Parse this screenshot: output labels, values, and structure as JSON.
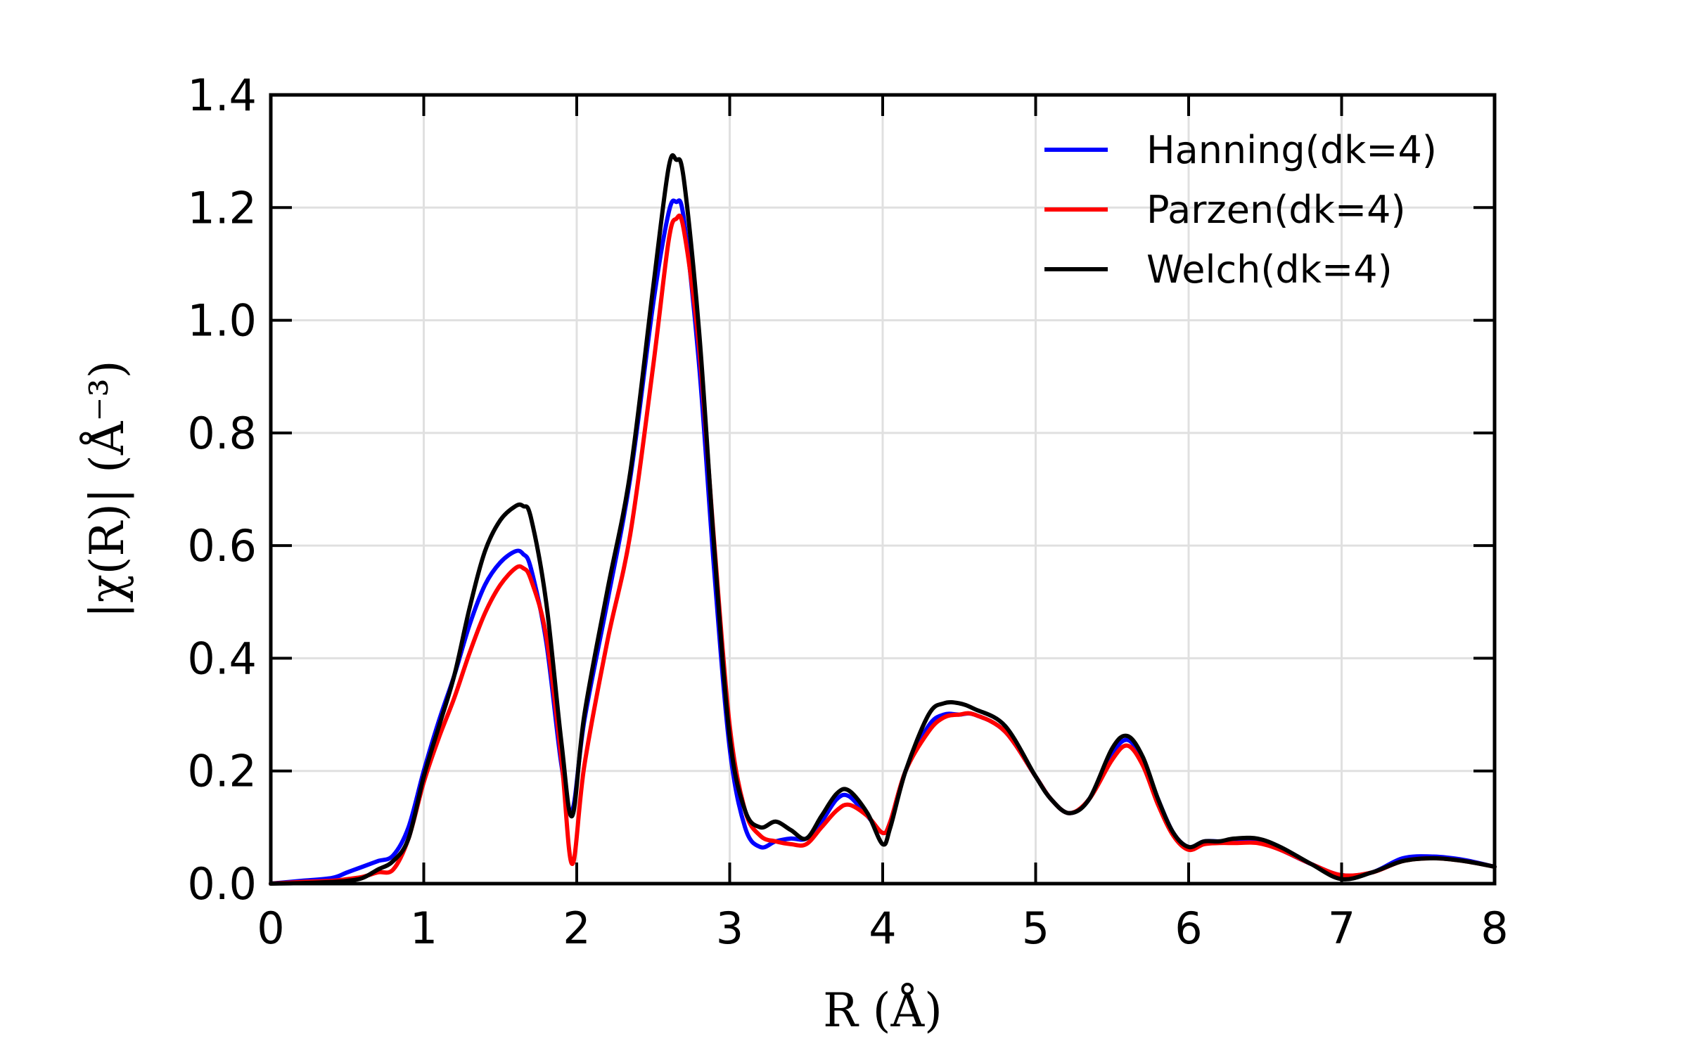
{
  "chart_data": {
    "type": "line",
    "xlabel": "R (Å)",
    "ylabel": "|χ(R)| (Å⁻³)",
    "xlim": [
      0,
      8
    ],
    "ylim": [
      0,
      1.4
    ],
    "xticks": [
      0,
      1,
      2,
      3,
      4,
      5,
      6,
      7,
      8
    ],
    "xtick_labels": [
      "0",
      "1",
      "2",
      "3",
      "4",
      "5",
      "6",
      "7",
      "8"
    ],
    "yticks": [
      0.0,
      0.2,
      0.4,
      0.6,
      0.8,
      1.0,
      1.2,
      1.4
    ],
    "ytick_labels": [
      "0.0",
      "0.2",
      "0.4",
      "0.6",
      "0.8",
      "1.0",
      "1.2",
      "1.4"
    ],
    "grid": true,
    "legend_position": "top-right",
    "series": [
      {
        "name": "Hanning(dk=4)",
        "color": "#0000ff",
        "x": [
          0,
          0.2,
          0.4,
          0.5,
          0.6,
          0.7,
          0.8,
          0.9,
          1.0,
          1.1,
          1.2,
          1.3,
          1.4,
          1.5,
          1.6,
          1.65,
          1.7,
          1.8,
          1.9,
          1.97,
          2.05,
          2.2,
          2.35,
          2.5,
          2.6,
          2.65,
          2.7,
          2.8,
          2.9,
          3.0,
          3.1,
          3.2,
          3.3,
          3.4,
          3.5,
          3.6,
          3.7,
          3.78,
          3.9,
          4.0,
          4.05,
          4.15,
          4.3,
          4.4,
          4.5,
          4.6,
          4.8,
          5.0,
          5.1,
          5.22,
          5.35,
          5.5,
          5.6,
          5.7,
          5.8,
          5.9,
          6.0,
          6.1,
          6.2,
          6.3,
          6.45,
          6.6,
          6.8,
          7.0,
          7.2,
          7.4,
          7.6,
          7.8,
          8.0
        ],
        "values": [
          0.0,
          0.005,
          0.01,
          0.02,
          0.03,
          0.04,
          0.05,
          0.1,
          0.2,
          0.29,
          0.37,
          0.46,
          0.53,
          0.57,
          0.59,
          0.585,
          0.56,
          0.43,
          0.21,
          0.13,
          0.29,
          0.5,
          0.72,
          1.03,
          1.19,
          1.21,
          1.18,
          0.92,
          0.55,
          0.24,
          0.1,
          0.065,
          0.075,
          0.08,
          0.08,
          0.11,
          0.15,
          0.155,
          0.12,
          0.09,
          0.11,
          0.2,
          0.28,
          0.3,
          0.3,
          0.3,
          0.27,
          0.19,
          0.15,
          0.125,
          0.15,
          0.23,
          0.255,
          0.22,
          0.15,
          0.09,
          0.065,
          0.075,
          0.075,
          0.075,
          0.075,
          0.06,
          0.035,
          0.015,
          0.02,
          0.045,
          0.048,
          0.042,
          0.03
        ]
      },
      {
        "name": "Parzen(dk=4)",
        "color": "#ff0000",
        "x": [
          0,
          0.2,
          0.4,
          0.5,
          0.6,
          0.7,
          0.8,
          0.9,
          1.0,
          1.1,
          1.2,
          1.3,
          1.4,
          1.5,
          1.6,
          1.65,
          1.7,
          1.8,
          1.9,
          1.97,
          2.05,
          2.2,
          2.35,
          2.5,
          2.6,
          2.65,
          2.7,
          2.8,
          2.9,
          3.0,
          3.1,
          3.2,
          3.3,
          3.4,
          3.5,
          3.6,
          3.7,
          3.78,
          3.9,
          4.0,
          4.05,
          4.15,
          4.3,
          4.4,
          4.5,
          4.6,
          4.8,
          5.0,
          5.1,
          5.22,
          5.35,
          5.5,
          5.6,
          5.7,
          5.8,
          5.9,
          6.0,
          6.1,
          6.2,
          6.3,
          6.45,
          6.6,
          6.8,
          7.0,
          7.2,
          7.4,
          7.6,
          7.8,
          8.0
        ],
        "values": [
          0.0,
          0.003,
          0.005,
          0.008,
          0.012,
          0.02,
          0.025,
          0.08,
          0.18,
          0.26,
          0.33,
          0.41,
          0.48,
          0.53,
          0.56,
          0.56,
          0.54,
          0.44,
          0.22,
          0.035,
          0.21,
          0.43,
          0.62,
          0.92,
          1.14,
          1.18,
          1.16,
          0.95,
          0.6,
          0.28,
          0.13,
          0.085,
          0.075,
          0.07,
          0.07,
          0.1,
          0.13,
          0.14,
          0.12,
          0.09,
          0.11,
          0.2,
          0.27,
          0.295,
          0.3,
          0.3,
          0.27,
          0.19,
          0.15,
          0.125,
          0.15,
          0.22,
          0.245,
          0.21,
          0.14,
          0.085,
          0.06,
          0.07,
          0.072,
          0.072,
          0.072,
          0.06,
          0.035,
          0.015,
          0.02,
          0.04,
          0.045,
          0.04,
          0.03
        ]
      },
      {
        "name": "Welch(dk=4)",
        "color": "#000000",
        "x": [
          0,
          0.2,
          0.4,
          0.5,
          0.6,
          0.7,
          0.8,
          0.9,
          1.0,
          1.1,
          1.2,
          1.3,
          1.4,
          1.5,
          1.6,
          1.65,
          1.7,
          1.8,
          1.9,
          1.97,
          2.05,
          2.2,
          2.35,
          2.5,
          2.6,
          2.65,
          2.7,
          2.8,
          2.9,
          3.0,
          3.1,
          3.2,
          3.3,
          3.4,
          3.5,
          3.6,
          3.7,
          3.78,
          3.9,
          4.0,
          4.05,
          4.15,
          4.3,
          4.4,
          4.5,
          4.6,
          4.8,
          5.0,
          5.1,
          5.22,
          5.35,
          5.5,
          5.6,
          5.7,
          5.8,
          5.9,
          6.0,
          6.1,
          6.2,
          6.3,
          6.45,
          6.6,
          6.8,
          7.0,
          7.2,
          7.4,
          7.6,
          7.8,
          8.0
        ],
        "values": [
          0.0,
          0.001,
          0.003,
          0.005,
          0.01,
          0.025,
          0.04,
          0.08,
          0.19,
          0.28,
          0.37,
          0.49,
          0.59,
          0.645,
          0.67,
          0.67,
          0.65,
          0.5,
          0.25,
          0.12,
          0.3,
          0.52,
          0.73,
          1.06,
          1.27,
          1.285,
          1.25,
          0.98,
          0.59,
          0.26,
          0.13,
          0.1,
          0.11,
          0.095,
          0.08,
          0.12,
          0.16,
          0.165,
          0.125,
          0.07,
          0.1,
          0.2,
          0.3,
          0.32,
          0.32,
          0.31,
          0.28,
          0.19,
          0.15,
          0.125,
          0.15,
          0.24,
          0.262,
          0.225,
          0.15,
          0.09,
          0.065,
          0.075,
          0.075,
          0.08,
          0.08,
          0.065,
          0.035,
          0.008,
          0.02,
          0.04,
          0.045,
          0.04,
          0.03
        ]
      }
    ]
  }
}
